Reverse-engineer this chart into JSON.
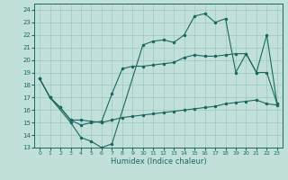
{
  "xlabel": "Humidex (Indice chaleur)",
  "bg_color": "#c2e0da",
  "grid_color": "#9dc8c0",
  "line_color": "#1a6860",
  "xlim": [
    -0.5,
    23.5
  ],
  "ylim": [
    13,
    24.5
  ],
  "xticks": [
    0,
    1,
    2,
    3,
    4,
    5,
    6,
    7,
    8,
    9,
    10,
    11,
    12,
    13,
    14,
    15,
    16,
    17,
    18,
    19,
    20,
    21,
    22,
    23
  ],
  "yticks": [
    13,
    14,
    15,
    16,
    17,
    18,
    19,
    20,
    21,
    22,
    23,
    24
  ],
  "line1_x": [
    0,
    1,
    2,
    3,
    4,
    5,
    6,
    7,
    8,
    9,
    10,
    11,
    12,
    13,
    14,
    15,
    16,
    17,
    18,
    19,
    20,
    21,
    22,
    23
  ],
  "line1_y": [
    18.5,
    17.0,
    16.2,
    15.2,
    15.2,
    15.1,
    15.0,
    15.2,
    15.4,
    15.5,
    15.6,
    15.7,
    15.8,
    15.9,
    16.0,
    16.1,
    16.2,
    16.3,
    16.5,
    16.6,
    16.7,
    16.8,
    16.5,
    16.4
  ],
  "line2_x": [
    0,
    1,
    2,
    3,
    4,
    5,
    6,
    7,
    8,
    9,
    10,
    11,
    12,
    13,
    14,
    15,
    16,
    17,
    18,
    19,
    20,
    21,
    22,
    23
  ],
  "line2_y": [
    18.5,
    17.0,
    16.2,
    15.2,
    14.8,
    15.0,
    15.1,
    17.3,
    19.3,
    19.5,
    19.5,
    19.6,
    19.7,
    19.8,
    20.2,
    20.4,
    20.3,
    20.3,
    20.4,
    20.5,
    20.5,
    19.0,
    19.0,
    16.5
  ],
  "line3_x": [
    0,
    1,
    3,
    4,
    5,
    6,
    7,
    10,
    11,
    12,
    13,
    14,
    15,
    16,
    17,
    18,
    19,
    20,
    21,
    22,
    23
  ],
  "line3_y": [
    18.5,
    17.0,
    15.0,
    13.8,
    13.5,
    13.0,
    13.3,
    21.2,
    21.5,
    21.6,
    21.4,
    22.0,
    23.5,
    23.7,
    23.0,
    23.3,
    19.0,
    20.5,
    19.0,
    22.0,
    16.5
  ]
}
